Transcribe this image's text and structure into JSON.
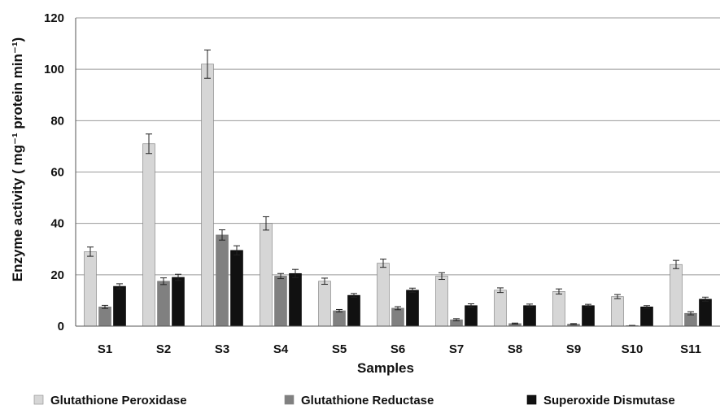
{
  "chart_data": {
    "type": "bar",
    "title": "",
    "xlabel": "Samples",
    "ylabel": "Enzyme activity ( mg⁻¹ protein min⁻¹)",
    "ylim": [
      0,
      120
    ],
    "yticks": [
      0,
      20,
      40,
      60,
      80,
      100,
      120
    ],
    "grid": true,
    "legend_position": "bottom",
    "categories": [
      "S1",
      "S2",
      "S3",
      "S4",
      "S5",
      "S6",
      "S7",
      "S8",
      "S9",
      "S10",
      "S11"
    ],
    "series": [
      {
        "name": "Glutathione Peroxidase",
        "color": "#d6d6d6",
        "values": [
          29,
          71,
          102,
          40,
          17.5,
          24.5,
          19.5,
          14,
          13.5,
          11.5,
          24
        ],
        "errors": [
          1.8,
          3.8,
          5.5,
          2.6,
          1.2,
          1.6,
          1.3,
          0.9,
          1.0,
          0.8,
          1.6
        ]
      },
      {
        "name": "Glutathione Reductase",
        "color": "#808080",
        "values": [
          7.5,
          17.5,
          35.5,
          19.5,
          6,
          7,
          2.5,
          1,
          0.8,
          0.2,
          5
        ],
        "errors": [
          0.6,
          1.3,
          2.0,
          1.0,
          0.5,
          0.6,
          0.4,
          0.2,
          0.2,
          0.1,
          0.6
        ]
      },
      {
        "name": "Superoxide Dismutase",
        "color": "#111111",
        "values": [
          15.5,
          19,
          29.5,
          20.5,
          12,
          14,
          8,
          8,
          8,
          7.5,
          10.5
        ],
        "errors": [
          1.0,
          1.2,
          1.8,
          1.6,
          0.7,
          0.8,
          0.7,
          0.6,
          0.5,
          0.5,
          0.8
        ]
      }
    ]
  }
}
